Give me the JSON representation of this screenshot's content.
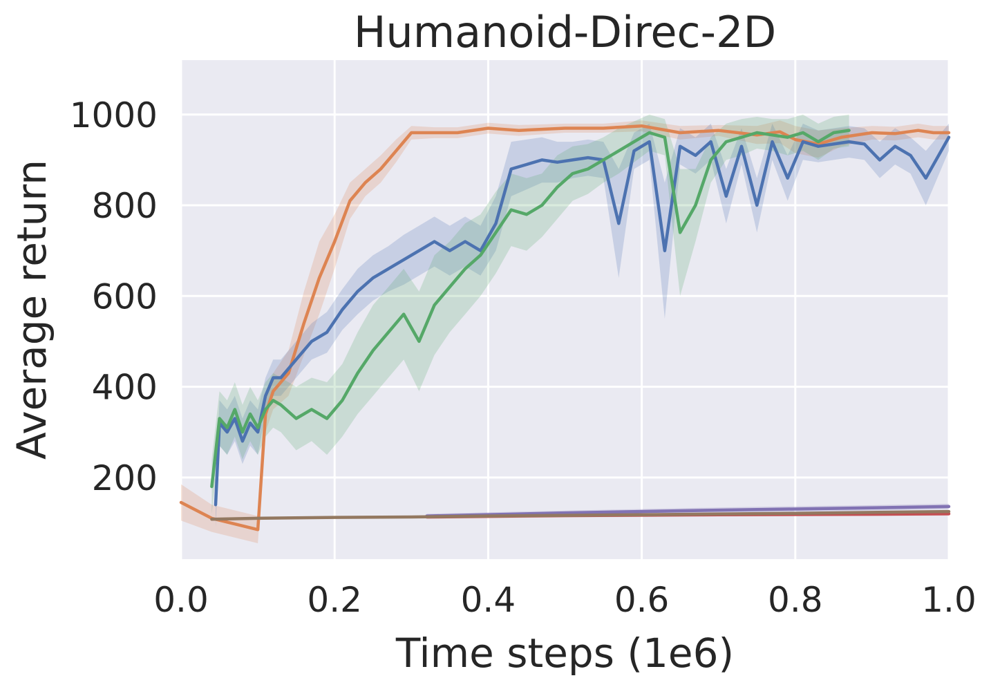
{
  "chart_data": {
    "type": "line",
    "title": "Humanoid-Direc-2D",
    "xlabel": "Time steps (1e6)",
    "ylabel": "Average return",
    "xlim": [
      0.0,
      1.0
    ],
    "ylim": [
      20,
      1120
    ],
    "xticks": [
      "0.0",
      "0.2",
      "0.4",
      "0.6",
      "0.8",
      "1.0"
    ],
    "yticks": [
      "200",
      "400",
      "600",
      "800",
      "1000"
    ],
    "xtick_values": [
      0.0,
      0.2,
      0.4,
      0.6,
      0.8,
      1.0
    ],
    "ytick_values": [
      200,
      400,
      600,
      800,
      1000
    ],
    "grid": true,
    "background_color": "#eaeaf2",
    "series": [
      {
        "color": "#dd8452",
        "x": [
          0.0,
          0.04,
          0.1,
          0.11,
          0.12,
          0.14,
          0.16,
          0.18,
          0.2,
          0.22,
          0.24,
          0.26,
          0.28,
          0.3,
          0.33,
          0.36,
          0.4,
          0.44,
          0.5,
          0.55,
          0.6,
          0.65,
          0.7,
          0.75,
          0.78,
          0.8,
          0.83,
          0.86,
          0.9,
          0.93,
          0.96,
          0.98,
          1.0
        ],
        "y": [
          145,
          110,
          85,
          340,
          390,
          430,
          540,
          640,
          720,
          810,
          850,
          880,
          920,
          960,
          960,
          960,
          970,
          965,
          970,
          970,
          975,
          960,
          965,
          955,
          962,
          945,
          935,
          950,
          960,
          958,
          965,
          960,
          960
        ],
        "band": [
          40,
          30,
          30,
          40,
          40,
          50,
          70,
          80,
          60,
          40,
          30,
          30,
          25,
          15,
          12,
          12,
          12,
          12,
          10,
          10,
          12,
          15,
          12,
          20,
          25,
          30,
          30,
          20,
          15,
          15,
          15,
          15,
          15
        ]
      },
      {
        "color": "#4c72b0",
        "x": [
          0.045,
          0.05,
          0.06,
          0.07,
          0.08,
          0.09,
          0.1,
          0.11,
          0.12,
          0.13,
          0.15,
          0.17,
          0.19,
          0.21,
          0.23,
          0.25,
          0.27,
          0.29,
          0.31,
          0.33,
          0.35,
          0.37,
          0.39,
          0.41,
          0.43,
          0.45,
          0.47,
          0.49,
          0.51,
          0.53,
          0.55,
          0.57,
          0.59,
          0.61,
          0.63,
          0.65,
          0.67,
          0.69,
          0.71,
          0.73,
          0.75,
          0.77,
          0.79,
          0.81,
          0.83,
          0.85,
          0.87,
          0.89,
          0.91,
          0.93,
          0.95,
          0.97,
          0.99,
          1.0
        ],
        "y": [
          140,
          320,
          300,
          330,
          280,
          320,
          300,
          380,
          420,
          420,
          460,
          500,
          520,
          570,
          610,
          640,
          660,
          680,
          700,
          720,
          700,
          720,
          700,
          760,
          880,
          890,
          900,
          895,
          900,
          905,
          900,
          760,
          920,
          940,
          700,
          930,
          910,
          940,
          820,
          930,
          800,
          940,
          860,
          940,
          930,
          935,
          940,
          935,
          900,
          930,
          910,
          860,
          920,
          950
        ],
        "band": [
          50,
          50,
          50,
          50,
          50,
          50,
          50,
          40,
          40,
          40,
          40,
          40,
          45,
          45,
          50,
          50,
          50,
          55,
          55,
          55,
          55,
          55,
          55,
          60,
          60,
          55,
          50,
          45,
          40,
          40,
          40,
          120,
          40,
          40,
          150,
          40,
          40,
          40,
          60,
          40,
          60,
          40,
          50,
          40,
          35,
          35,
          35,
          35,
          40,
          40,
          40,
          60,
          40,
          30
        ]
      },
      {
        "color": "#55a868",
        "x": [
          0.04,
          0.05,
          0.06,
          0.07,
          0.08,
          0.09,
          0.1,
          0.11,
          0.12,
          0.13,
          0.15,
          0.17,
          0.19,
          0.21,
          0.23,
          0.25,
          0.27,
          0.29,
          0.31,
          0.33,
          0.35,
          0.37,
          0.39,
          0.41,
          0.43,
          0.45,
          0.47,
          0.49,
          0.51,
          0.53,
          0.55,
          0.57,
          0.59,
          0.61,
          0.63,
          0.65,
          0.67,
          0.69,
          0.71,
          0.73,
          0.75,
          0.77,
          0.79,
          0.81,
          0.83,
          0.85,
          0.87
        ],
        "y": [
          180,
          330,
          310,
          350,
          300,
          340,
          310,
          350,
          370,
          360,
          330,
          350,
          330,
          370,
          430,
          480,
          520,
          560,
          500,
          580,
          620,
          660,
          690,
          740,
          790,
          780,
          800,
          840,
          870,
          880,
          900,
          920,
          940,
          960,
          950,
          740,
          800,
          900,
          940,
          950,
          960,
          955,
          950,
          960,
          940,
          960,
          965
        ],
        "band": [
          60,
          60,
          60,
          60,
          60,
          60,
          60,
          60,
          60,
          60,
          70,
          70,
          80,
          80,
          90,
          100,
          100,
          100,
          110,
          110,
          100,
          100,
          90,
          90,
          80,
          80,
          70,
          70,
          60,
          55,
          50,
          50,
          45,
          40,
          40,
          140,
          80,
          50,
          40,
          40,
          35,
          35,
          40,
          40,
          40,
          35,
          35
        ]
      },
      {
        "color": "#8172b3",
        "x": [
          0.32,
          0.5,
          0.7,
          0.9,
          1.0
        ],
        "y": [
          115,
          122,
          128,
          133,
          136
        ],
        "band": [
          5,
          5,
          6,
          6,
          6
        ]
      },
      {
        "color": "#c44e52",
        "x": [
          0.32,
          0.5,
          0.7,
          0.9,
          1.0
        ],
        "y": [
          113,
          116,
          118,
          119,
          120
        ],
        "band": [
          4,
          4,
          4,
          4,
          4
        ]
      },
      {
        "color": "#937860",
        "x": [
          0.04,
          0.1,
          0.2,
          0.3,
          0.4,
          0.6,
          0.8,
          1.0
        ],
        "y": [
          108,
          110,
          112,
          113,
          115,
          118,
          121,
          125
        ],
        "band": [
          3,
          3,
          3,
          3,
          3,
          3,
          3,
          3
        ]
      }
    ]
  }
}
